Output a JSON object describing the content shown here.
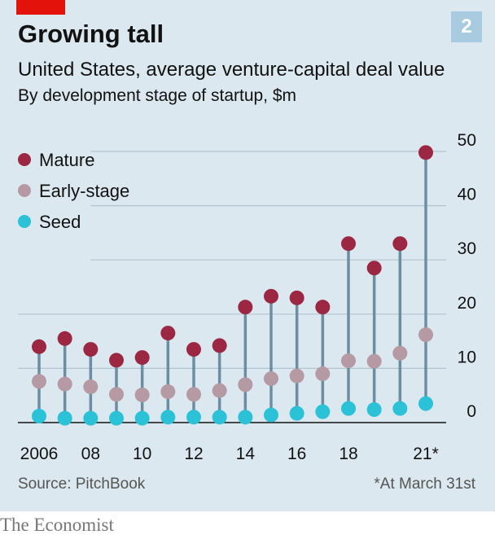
{
  "header": {
    "badge": "2",
    "title": "Growing tall",
    "subtitle": "United States, average venture-capital deal value",
    "subsubtitle": "By development stage of startup, $m"
  },
  "footer": {
    "source": "Source: PitchBook",
    "footnote": "*At March 31st",
    "brand": "The Economist"
  },
  "colors": {
    "background": "#dbe8ef",
    "accent": "#e3120b",
    "badge": "#a9cbe0",
    "mature": "#9b2743",
    "early_stage": "#b59aa3",
    "seed": "#2bc2d8",
    "stem": "#6c8ea3",
    "grid": "#b4c4cf"
  },
  "chart_data": {
    "type": "scatter",
    "style": "dumbbell",
    "x": [
      2006,
      2007,
      2008,
      2009,
      2010,
      2011,
      2012,
      2013,
      2014,
      2015,
      2016,
      2017,
      2018,
      2019,
      2020,
      2021
    ],
    "x_tick_labels": [
      "2006",
      "",
      "08",
      "",
      "10",
      "",
      "12",
      "",
      "14",
      "",
      "16",
      "",
      "18",
      "",
      "",
      "21*"
    ],
    "y_ticks": [
      0,
      10,
      20,
      30,
      40,
      50
    ],
    "ylim": [
      0,
      50
    ],
    "y_axis_side": "right",
    "legend_position": "top-left",
    "series": [
      {
        "name": "Mature",
        "values": [
          14.0,
          15.5,
          13.5,
          11.5,
          12.0,
          16.5,
          13.5,
          14.2,
          21.3,
          23.3,
          23.0,
          21.3,
          33.0,
          28.5,
          33.0,
          49.8
        ]
      },
      {
        "name": "Early-stage",
        "values": [
          7.6,
          7.1,
          6.6,
          5.2,
          5.1,
          5.7,
          5.2,
          5.9,
          7.0,
          8.1,
          8.6,
          9.0,
          11.4,
          11.3,
          12.8,
          16.2
        ]
      },
      {
        "name": "Seed",
        "values": [
          1.2,
          0.8,
          0.8,
          0.8,
          0.8,
          1.0,
          1.0,
          1.0,
          1.0,
          1.4,
          1.7,
          2.0,
          2.6,
          2.4,
          2.6,
          3.5
        ]
      }
    ]
  }
}
